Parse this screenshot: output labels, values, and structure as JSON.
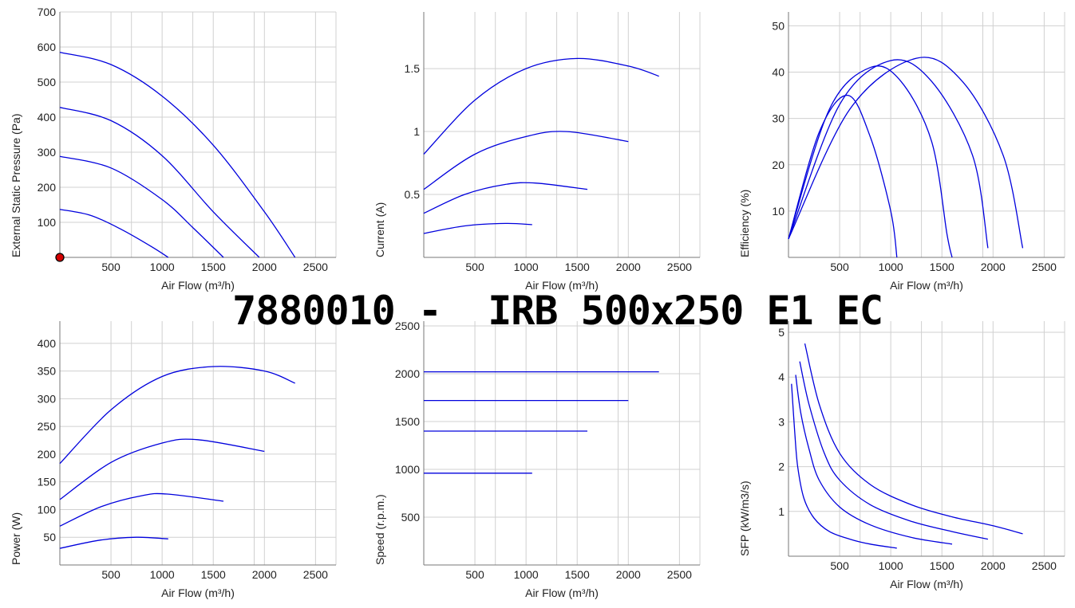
{
  "title": "7880010 -  IRB 500x250 E1 EC",
  "colors": {
    "curve": "#0000dd",
    "grid": "#d0d0d0",
    "marker": "#d40000"
  },
  "chart_data": [
    {
      "type": "line",
      "xlabel": "Air Flow (m³/h)",
      "ylabel": "External Static Pressure (Pa)",
      "xlim": [
        0,
        2700
      ],
      "ylim": [
        0,
        700
      ],
      "xticks": [
        500,
        1000,
        1500,
        2000,
        2500
      ],
      "yticks": [
        100,
        200,
        300,
        400,
        500,
        600,
        700
      ],
      "series": [
        {
          "points": [
            [
              0,
              585
            ],
            [
              500,
              550
            ],
            [
              1000,
              460
            ],
            [
              1500,
              320
            ],
            [
              2000,
              130
            ],
            [
              2300,
              0
            ]
          ]
        },
        {
          "points": [
            [
              0,
              428
            ],
            [
              500,
              390
            ],
            [
              1000,
              290
            ],
            [
              1500,
              130
            ],
            [
              1950,
              0
            ]
          ]
        },
        {
          "points": [
            [
              0,
              288
            ],
            [
              500,
              255
            ],
            [
              1000,
              165
            ],
            [
              1300,
              85
            ],
            [
              1600,
              0
            ]
          ]
        },
        {
          "points": [
            [
              0,
              137
            ],
            [
              300,
              120
            ],
            [
              600,
              80
            ],
            [
              900,
              30
            ],
            [
              1060,
              0
            ]
          ]
        }
      ],
      "marker": {
        "x": 0,
        "y": 0
      }
    },
    {
      "type": "line",
      "xlabel": "Air Flow (m³/h)",
      "ylabel": "Current (A)",
      "xlim": [
        0,
        2700
      ],
      "ylim": [
        0,
        1.95
      ],
      "xticks": [
        500,
        1000,
        1500,
        2000,
        2500
      ],
      "yticks": [
        0.5,
        1,
        1.5
      ],
      "ytick_labels": [
        "0.5",
        "1",
        "1.5"
      ],
      "series": [
        {
          "points": [
            [
              0,
              0.82
            ],
            [
              500,
              1.25
            ],
            [
              1000,
              1.5
            ],
            [
              1500,
              1.58
            ],
            [
              2000,
              1.52
            ],
            [
              2300,
              1.44
            ]
          ]
        },
        {
          "points": [
            [
              0,
              0.54
            ],
            [
              500,
              0.82
            ],
            [
              1000,
              0.96
            ],
            [
              1400,
              1.0
            ],
            [
              2000,
              0.92
            ]
          ]
        },
        {
          "points": [
            [
              0,
              0.35
            ],
            [
              400,
              0.5
            ],
            [
              800,
              0.58
            ],
            [
              1100,
              0.59
            ],
            [
              1600,
              0.54
            ]
          ]
        },
        {
          "points": [
            [
              0,
              0.19
            ],
            [
              400,
              0.25
            ],
            [
              800,
              0.27
            ],
            [
              1060,
              0.26
            ]
          ]
        }
      ]
    },
    {
      "type": "line",
      "xlabel": "Air Flow (m³/h)",
      "ylabel": "Efficiency (%)",
      "xlim": [
        0,
        2700
      ],
      "ylim": [
        0,
        53
      ],
      "xticks": [
        500,
        1000,
        1500,
        2000,
        2500
      ],
      "yticks": [
        10,
        20,
        30,
        40,
        50
      ],
      "series": [
        {
          "points": [
            [
              0,
              4
            ],
            [
              300,
              27
            ],
            [
              580,
              35
            ],
            [
              800,
              26
            ],
            [
              1000,
              10
            ],
            [
              1060,
              0
            ]
          ]
        },
        {
          "points": [
            [
              0,
              4
            ],
            [
              400,
              32
            ],
            [
              800,
              41
            ],
            [
              1100,
              38
            ],
            [
              1400,
              25
            ],
            [
              1550,
              5
            ],
            [
              1600,
              0
            ]
          ]
        },
        {
          "points": [
            [
              0,
              4
            ],
            [
              500,
              33
            ],
            [
              1000,
              42.5
            ],
            [
              1400,
              38
            ],
            [
              1800,
              22
            ],
            [
              1950,
              2
            ]
          ]
        },
        {
          "points": [
            [
              0,
              4
            ],
            [
              600,
              32
            ],
            [
              1250,
              43
            ],
            [
              1700,
              38
            ],
            [
              2100,
              22
            ],
            [
              2290,
              2
            ]
          ]
        }
      ]
    },
    {
      "type": "line",
      "xlabel": "Air Flow (m³/h)",
      "ylabel": "Power (W)",
      "xlim": [
        0,
        2700
      ],
      "ylim": [
        0,
        440
      ],
      "xticks": [
        500,
        1000,
        1500,
        2000,
        2500
      ],
      "yticks": [
        50,
        100,
        150,
        200,
        250,
        300,
        350,
        400
      ],
      "series": [
        {
          "points": [
            [
              0,
              183
            ],
            [
              500,
              280
            ],
            [
              1000,
              340
            ],
            [
              1500,
              358
            ],
            [
              2000,
              350
            ],
            [
              2300,
              328
            ]
          ]
        },
        {
          "points": [
            [
              0,
              118
            ],
            [
              500,
              185
            ],
            [
              1000,
              220
            ],
            [
              1350,
              226
            ],
            [
              2000,
              205
            ]
          ]
        },
        {
          "points": [
            [
              0,
              70
            ],
            [
              400,
              105
            ],
            [
              800,
              125
            ],
            [
              1050,
              128
            ],
            [
              1600,
              115
            ]
          ]
        },
        {
          "points": [
            [
              0,
              30
            ],
            [
              400,
              45
            ],
            [
              750,
              50
            ],
            [
              1060,
              47
            ]
          ]
        }
      ]
    },
    {
      "type": "line",
      "xlabel": "Air Flow (m³/h)",
      "ylabel": "Speed (r.p.m.)",
      "xlim": [
        0,
        2700
      ],
      "ylim": [
        0,
        2550
      ],
      "xticks": [
        500,
        1000,
        1500,
        2000,
        2500
      ],
      "yticks": [
        500,
        1000,
        1500,
        2000,
        2500
      ],
      "series": [
        {
          "points": [
            [
              0,
              2020
            ],
            [
              2300,
              2020
            ]
          ]
        },
        {
          "points": [
            [
              0,
              1720
            ],
            [
              2000,
              1720
            ]
          ]
        },
        {
          "points": [
            [
              0,
              1400
            ],
            [
              1600,
              1400
            ]
          ]
        },
        {
          "points": [
            [
              0,
              960
            ],
            [
              1060,
              960
            ]
          ]
        }
      ]
    },
    {
      "type": "line",
      "xlabel": "Air Flow (m³/h)",
      "ylabel": "SFP (kW/m3/s)",
      "xlim": [
        0,
        2700
      ],
      "ylim": [
        0,
        5.25
      ],
      "xticks": [
        500,
        1000,
        1500,
        2000,
        2500
      ],
      "yticks": [
        1,
        2,
        3,
        4,
        5
      ],
      "series": [
        {
          "points": [
            [
              30,
              3.85
            ],
            [
              60,
              2.8
            ],
            [
              90,
              2.0
            ],
            [
              150,
              1.3
            ],
            [
              250,
              0.85
            ],
            [
              400,
              0.55
            ],
            [
              600,
              0.38
            ],
            [
              800,
              0.27
            ],
            [
              1060,
              0.18
            ]
          ]
        },
        {
          "points": [
            [
              70,
              4.05
            ],
            [
              120,
              3.2
            ],
            [
              200,
              2.4
            ],
            [
              300,
              1.7
            ],
            [
              500,
              1.1
            ],
            [
              800,
              0.7
            ],
            [
              1200,
              0.42
            ],
            [
              1600,
              0.27
            ]
          ]
        },
        {
          "points": [
            [
              110,
              4.35
            ],
            [
              200,
              3.4
            ],
            [
              350,
              2.3
            ],
            [
              500,
              1.7
            ],
            [
              800,
              1.15
            ],
            [
              1200,
              0.78
            ],
            [
              1600,
              0.55
            ],
            [
              1950,
              0.38
            ]
          ]
        },
        {
          "points": [
            [
              160,
              4.75
            ],
            [
              300,
              3.4
            ],
            [
              500,
              2.3
            ],
            [
              800,
              1.6
            ],
            [
              1200,
              1.15
            ],
            [
              1600,
              0.88
            ],
            [
              2000,
              0.68
            ],
            [
              2290,
              0.5
            ]
          ]
        }
      ]
    }
  ]
}
